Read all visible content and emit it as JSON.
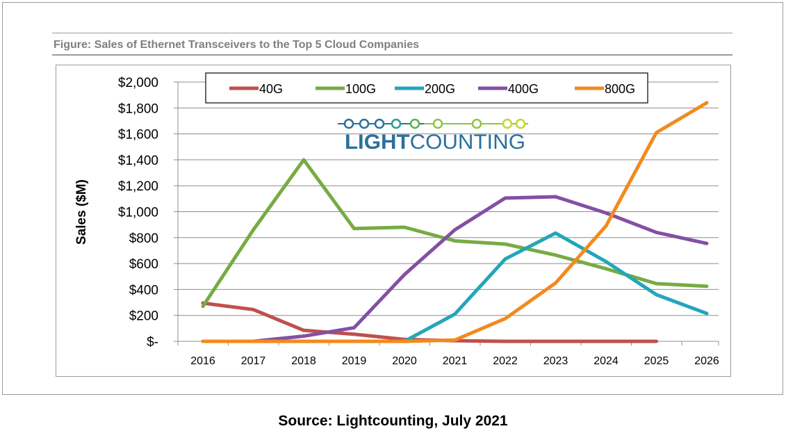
{
  "figure": {
    "caption": "Figure: Sales of Ethernet Transceivers to the Top 5 Cloud Companies",
    "source": "Source: Lightcounting, July 2021",
    "logo_text_bold": "LIGHT",
    "logo_text_rest": "COUNTING"
  },
  "chart_data": {
    "type": "line",
    "title": "",
    "xlabel": "",
    "ylabel": "Sales ($M)",
    "categories": [
      "2016",
      "2017",
      "2018",
      "2019",
      "2020",
      "2021",
      "2022",
      "2023",
      "2024",
      "2025",
      "2026"
    ],
    "ylim": [
      0,
      2000
    ],
    "yticks": [
      0,
      200,
      400,
      600,
      800,
      1000,
      1200,
      1400,
      1600,
      1800,
      2000
    ],
    "ytick_labels": [
      "$-",
      "$200",
      "$400",
      "$600",
      "$800",
      "$1,000",
      "$1,200",
      "$1,400",
      "$1,600",
      "$1,800",
      "$2,000"
    ],
    "grid": "horizontal",
    "legend_position": "top",
    "series": [
      {
        "name": "40G",
        "color": "#c0504d",
        "values": [
          295,
          245,
          85,
          55,
          15,
          5,
          0,
          0,
          0,
          0,
          null
        ]
      },
      {
        "name": "100G",
        "color": "#77ab43",
        "values": [
          270,
          860,
          1400,
          870,
          880,
          775,
          750,
          665,
          560,
          445,
          425
        ]
      },
      {
        "name": "200G",
        "color": "#23a6b8",
        "values": [
          0,
          0,
          0,
          0,
          0,
          210,
          635,
          835,
          615,
          360,
          215
        ]
      },
      {
        "name": "400G",
        "color": "#8350a3",
        "values": [
          0,
          0,
          40,
          105,
          515,
          860,
          1105,
          1115,
          990,
          840,
          755
        ]
      },
      {
        "name": "800G",
        "color": "#f28a1e",
        "values": [
          0,
          0,
          0,
          0,
          0,
          10,
          175,
          450,
          890,
          1610,
          1840
        ]
      }
    ],
    "colors": {
      "axis": "#8c8c8c",
      "grid": "#8c8c8c",
      "logo_blue": "#2a6f9e",
      "logo_green": "#8dc63f",
      "logo_yellow": "#c6d430"
    }
  }
}
